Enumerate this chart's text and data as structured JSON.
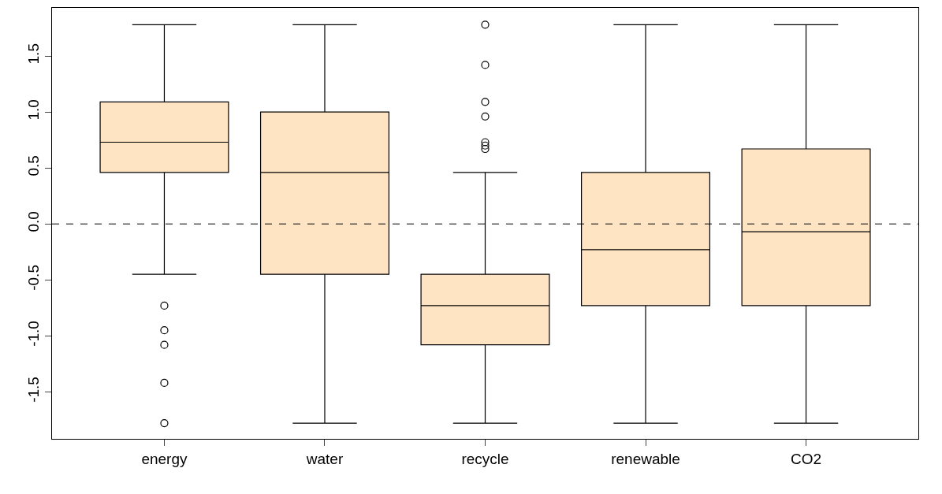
{
  "chart_data": {
    "type": "box",
    "categories": [
      "energy",
      "water",
      "recycle",
      "renewable",
      "CO2"
    ],
    "series": [
      {
        "color": "#ffe4c4",
        "boxes": [
          {
            "low": -0.45,
            "q1": 0.46,
            "median": 0.73,
            "q3": 1.09,
            "high": 1.78,
            "outliers": [
              -0.73,
              -0.95,
              -1.08,
              -1.42,
              -1.78
            ]
          },
          {
            "low": -1.78,
            "q1": -0.45,
            "median": 0.46,
            "q3": 1.0,
            "high": 1.78
          },
          {
            "low": -1.78,
            "q1": -1.08,
            "median": -0.73,
            "q3": -0.45,
            "high": 0.46,
            "outliers": [
              1.78,
              1.42,
              1.09,
              0.96,
              0.73,
              0.7,
              0.67
            ]
          },
          {
            "low": -1.78,
            "q1": -0.73,
            "median": -0.23,
            "q3": 0.46,
            "high": 1.78
          },
          {
            "low": -1.78,
            "q1": -0.73,
            "median": -0.07,
            "q3": 0.67,
            "high": 1.78
          }
        ]
      }
    ],
    "ylim": [
      -1.92,
      1.93
    ],
    "yticks": [
      {
        "value": -1.5,
        "label": "-1.5"
      },
      {
        "value": -1,
        "label": "-1.0"
      },
      {
        "value": -0.5,
        "label": "-0.5"
      },
      {
        "value": 0,
        "label": "0.0"
      },
      {
        "value": 0.5,
        "label": "0.5"
      },
      {
        "value": 1,
        "label": "1.0"
      },
      {
        "value": 1.5,
        "label": "1.5"
      }
    ],
    "ref_lines": [
      {
        "axis": "y",
        "value": 0,
        "line_style": "dashed"
      }
    ],
    "grid": false,
    "marker": "circle"
  }
}
